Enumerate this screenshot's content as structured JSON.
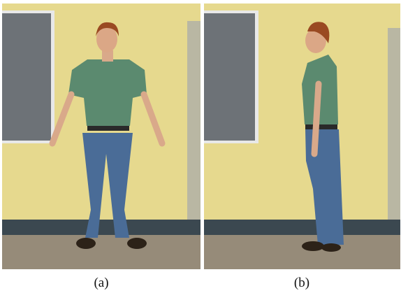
{
  "figures": [
    {
      "caption": "(a)"
    },
    {
      "caption": "(b)"
    }
  ]
}
